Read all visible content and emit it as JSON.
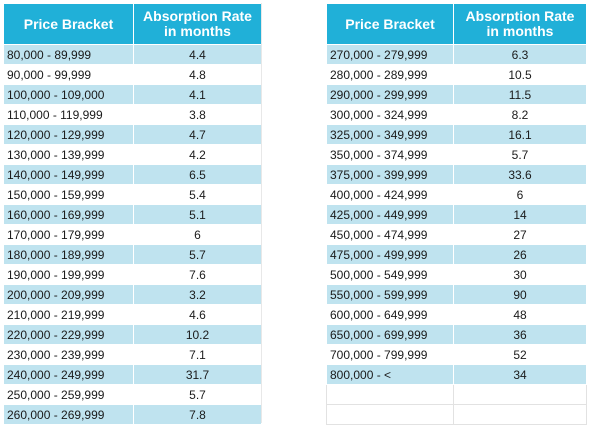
{
  "left_table": {
    "header": {
      "price_bracket": "Price Bracket",
      "absorption_rate_line1": "Absorption Rate",
      "absorption_rate_line2": "in months"
    },
    "rows": [
      {
        "bracket": "80,000 - 89,999",
        "rate": "4.4"
      },
      {
        "bracket": "90,000 - 99,999",
        "rate": "4.8"
      },
      {
        "bracket": "100,000 - 109,000",
        "rate": "4.1"
      },
      {
        "bracket": "110,000 - 119,999",
        "rate": "3.8"
      },
      {
        "bracket": "120,000 - 129,999",
        "rate": "4.7"
      },
      {
        "bracket": "130,000 - 139,999",
        "rate": "4.2"
      },
      {
        "bracket": "140,000 - 149,999",
        "rate": "6.5"
      },
      {
        "bracket": "150,000 - 159,999",
        "rate": "5.4"
      },
      {
        "bracket": "160,000 - 169,999",
        "rate": "5.1"
      },
      {
        "bracket": "170,000 - 179,999",
        "rate": "6"
      },
      {
        "bracket": "180,000 - 189,999",
        "rate": "5.7"
      },
      {
        "bracket": "190,000 - 199,999",
        "rate": "7.6"
      },
      {
        "bracket": "200,000 - 209,999",
        "rate": "3.2"
      },
      {
        "bracket": "210,000 - 219,999",
        "rate": "4.6"
      },
      {
        "bracket": "220,000 - 229,999",
        "rate": "10.2"
      },
      {
        "bracket": "230,000 - 239,999",
        "rate": "7.1"
      },
      {
        "bracket": "240,000 - 249,999",
        "rate": "31.7"
      },
      {
        "bracket": "250,000 - 259,999",
        "rate": "5.7"
      },
      {
        "bracket": "260,000 - 269,999",
        "rate": "7.8"
      }
    ]
  },
  "right_table": {
    "header": {
      "price_bracket": "Price Bracket",
      "absorption_rate_line1": "Absorption Rate",
      "absorption_rate_line2": "in months"
    },
    "rows": [
      {
        "bracket": "270,000 - 279,999",
        "rate": "6.3"
      },
      {
        "bracket": "280,000 - 289,999",
        "rate": "10.5"
      },
      {
        "bracket": "290,000 - 299,999",
        "rate": "11.5"
      },
      {
        "bracket": "300,000 - 324,999",
        "rate": "8.2"
      },
      {
        "bracket": "325,000 - 349,999",
        "rate": "16.1"
      },
      {
        "bracket": "350,000 - 374,999",
        "rate": "5.7"
      },
      {
        "bracket": "375,000 - 399,999",
        "rate": "33.6"
      },
      {
        "bracket": "400,000 - 424,999",
        "rate": "6"
      },
      {
        "bracket": "425,000 - 449,999",
        "rate": "14"
      },
      {
        "bracket": "450,000 - 474,999",
        "rate": "27"
      },
      {
        "bracket": "475,000 - 499,999",
        "rate": "26"
      },
      {
        "bracket": "500,000 - 549,999",
        "rate": "30"
      },
      {
        "bracket": "550,000 - 599,999",
        "rate": "90"
      },
      {
        "bracket": "600,000 - 649,999",
        "rate": "48"
      },
      {
        "bracket": "650,000 - 699,999",
        "rate": "36"
      },
      {
        "bracket": "700,000 - 799,999",
        "rate": "52"
      },
      {
        "bracket": "800,000 - <",
        "rate": "34"
      }
    ]
  },
  "colors": {
    "header_bg": "#20b0d8",
    "header_text": "#ffffff",
    "shaded_row": "#bfe3ef",
    "plain_row": "#ffffff"
  }
}
